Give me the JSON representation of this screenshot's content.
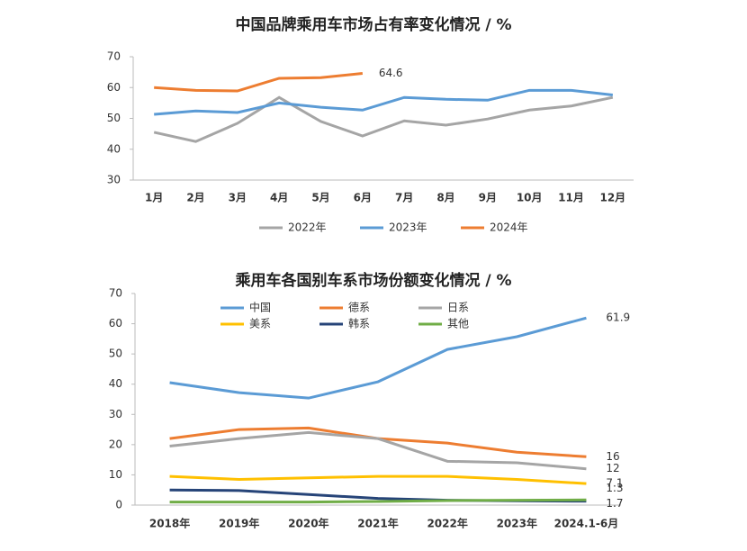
{
  "chart_data": [
    {
      "type": "line",
      "title": "中国品牌乘用车市场占有率变化情况 / %",
      "categories": [
        "1月",
        "2月",
        "3月",
        "4月",
        "5月",
        "6月",
        "7月",
        "8月",
        "9月",
        "10月",
        "11月",
        "12月"
      ],
      "series": [
        {
          "name": "2022年",
          "color": "#a5a5a5",
          "values": [
            45.5,
            42.5,
            48.4,
            56.8,
            49,
            44.3,
            49.2,
            47.8,
            49.8,
            52.7,
            54,
            56.8
          ]
        },
        {
          "name": "2023年",
          "color": "#5b9bd5",
          "values": [
            51.3,
            52.4,
            51.9,
            55,
            53.6,
            52.7,
            56.8,
            56.2,
            55.9,
            59.1,
            59.1,
            57.6
          ]
        },
        {
          "name": "2024年",
          "color": "#ed7d31",
          "values": [
            60,
            59.1,
            58.9,
            63,
            63.2,
            64.6,
            null,
            null,
            null,
            null,
            null,
            null
          ]
        }
      ],
      "ylim": [
        30,
        70
      ],
      "yticks": [
        30,
        40,
        50,
        60,
        70
      ],
      "legend": "bottom"
    },
    {
      "type": "line",
      "title": "乘用车各国别车系市场份额变化情况 / %",
      "categories": [
        "2018年",
        "2019年",
        "2020年",
        "2021年",
        "2022年",
        "2023年",
        "2024.1-6月"
      ],
      "series": [
        {
          "name": "中国",
          "color": "#5b9bd5",
          "values": [
            40.5,
            37.2,
            35.4,
            40.8,
            51.5,
            55.7,
            61.9
          ]
        },
        {
          "name": "德系",
          "color": "#ed7d31",
          "values": [
            22,
            25,
            25.5,
            22,
            20.5,
            17.5,
            16
          ]
        },
        {
          "name": "日系",
          "color": "#a5a5a5",
          "values": [
            19.5,
            22,
            24,
            22,
            14.5,
            14,
            12
          ]
        },
        {
          "name": "美系",
          "color": "#ffc000",
          "values": [
            9.5,
            8.5,
            9,
            9.5,
            9.5,
            8.5,
            7.1
          ]
        },
        {
          "name": "韩系",
          "color": "#264478",
          "values": [
            5,
            4.8,
            3.5,
            2.2,
            1.6,
            1.4,
            1.3
          ]
        },
        {
          "name": "其他",
          "color": "#70ad47",
          "values": [
            1,
            1,
            1,
            1.2,
            1.5,
            1.6,
            1.7
          ]
        }
      ],
      "ylim": [
        0,
        70
      ],
      "yticks": [
        0,
        10,
        20,
        30,
        40,
        50,
        60,
        70
      ],
      "legend": "top-left"
    }
  ]
}
